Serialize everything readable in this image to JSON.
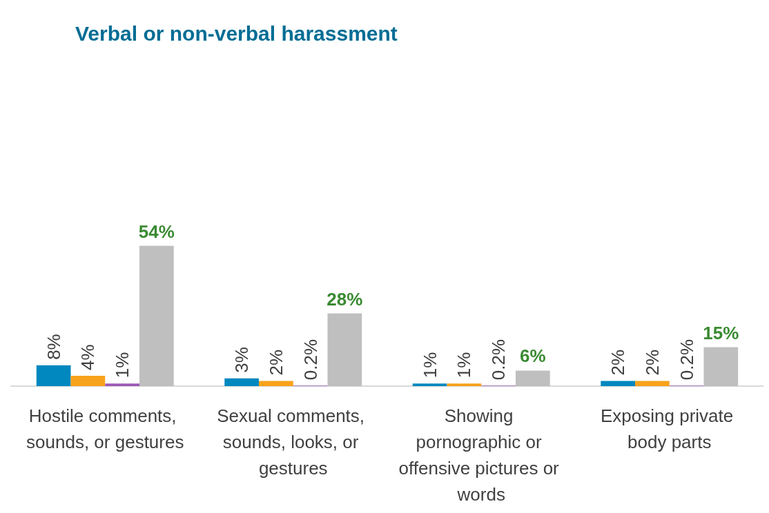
{
  "chart_data": {
    "type": "bar",
    "title": "Verbal or non-verbal harassment",
    "categories": [
      "Hostile comments, sounds, or gestures",
      "Sexual comments, sounds, looks, or gestures",
      "Showing pornographic or offensive pictures or words",
      "Exposing private body parts"
    ],
    "series": [
      {
        "color": "#0088bf",
        "values": [
          8,
          3,
          1,
          2
        ],
        "value_labels": [
          "8%",
          "3%",
          "1%",
          "2%"
        ]
      },
      {
        "color": "#f7a21b",
        "values": [
          4,
          2,
          1,
          2
        ],
        "value_labels": [
          "4%",
          "2%",
          "1%",
          "2%"
        ]
      },
      {
        "color": "#9b59b6",
        "values": [
          1,
          0.2,
          0.2,
          0.2
        ],
        "value_labels": [
          "1%",
          "0.2%",
          "0.2%",
          "0.2%"
        ]
      },
      {
        "color": "#bfbfbf",
        "values": [
          54,
          28,
          6,
          15
        ],
        "value_labels": [
          "54%",
          "28%",
          "6%",
          "15%"
        ]
      }
    ]
  }
}
